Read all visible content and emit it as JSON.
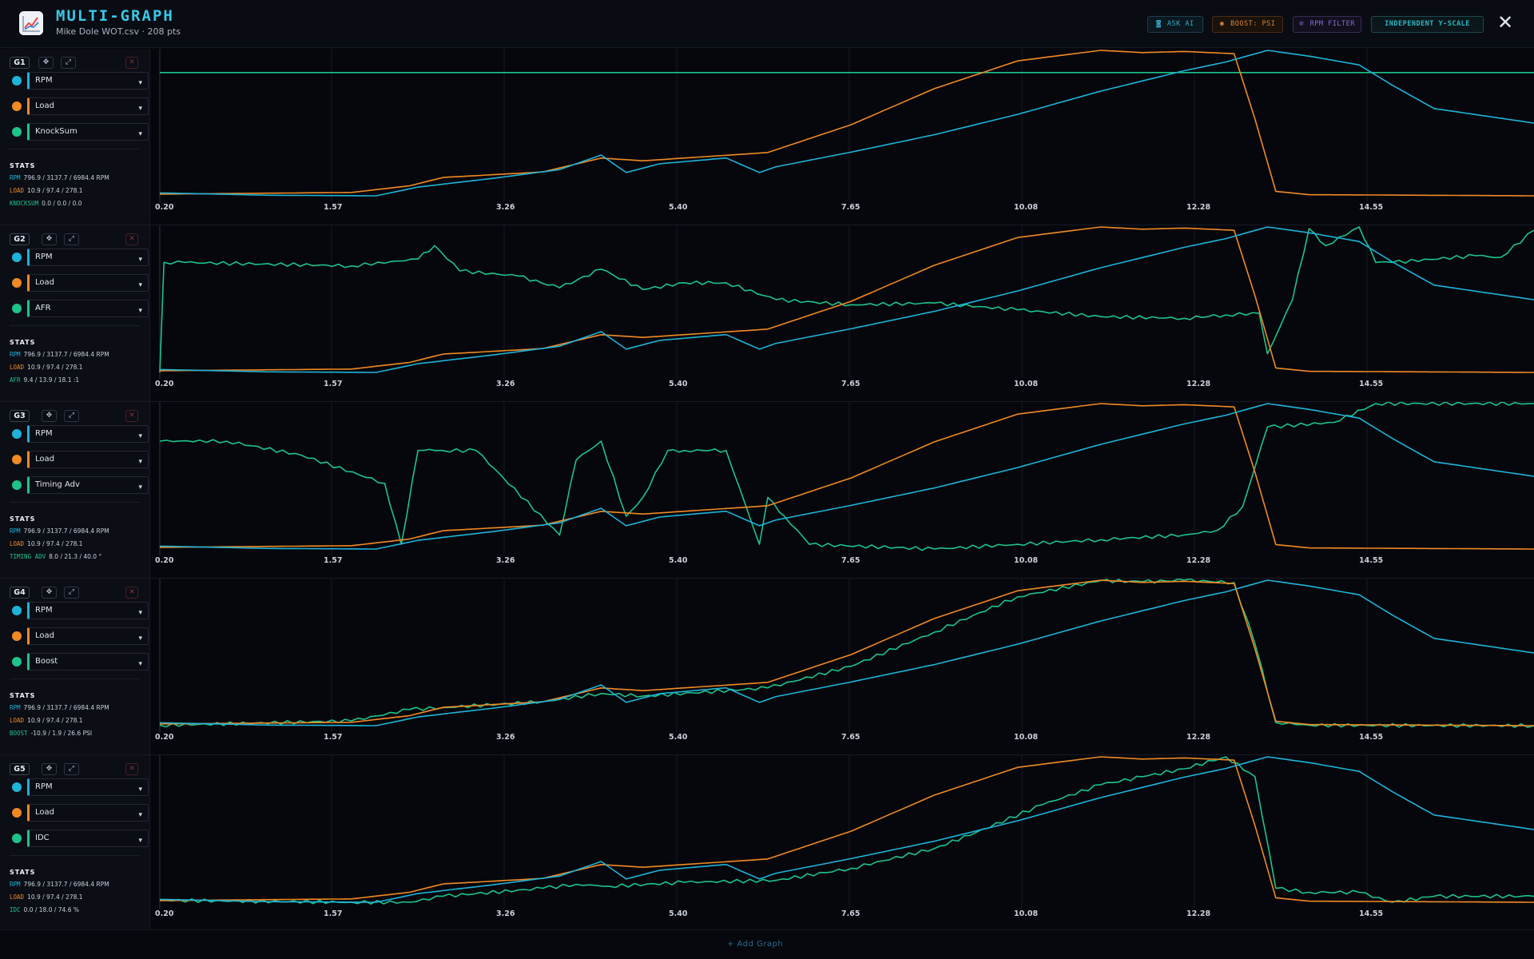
{
  "header": {
    "title": "MULTI-GRAPH",
    "subtitle": "Mike Dole WOT.csv · 208 pts",
    "buttons": {
      "ask_ai": "ASK AI",
      "boost": "BOOST: PSI",
      "rpm_filter": "RPM FILTER",
      "yscale": "INDEPENDENT Y-SCALE"
    }
  },
  "footer": {
    "add_graph": "+ Add Graph"
  },
  "colors": {
    "rpm": "#1fb3d9",
    "load": "#f08a24",
    "third": "#1ec38a",
    "accent": "#39c8e8"
  },
  "x_ticks": [
    "0.20",
    "1.57",
    "3.26",
    "5.40",
    "7.65",
    "10.08",
    "12.28",
    "14.55"
  ],
  "graphs": [
    {
      "tag": "G1",
      "series_labels": [
        "RPM",
        "Load",
        "KnockSum"
      ],
      "stats_title": "STATS",
      "stats": [
        {
          "key": "RPM",
          "text": "796.9 / 3137.7 / 6984.4 RPM"
        },
        {
          "key": "LOAD",
          "text": "10.9 / 97.4 / 278.1"
        },
        {
          "key": "KNOCKSUM",
          "text": "0.0 / 0.0 / 0.0"
        }
      ]
    },
    {
      "tag": "G2",
      "series_labels": [
        "RPM",
        "Load",
        "AFR"
      ],
      "stats_title": "STATS",
      "stats": [
        {
          "key": "RPM",
          "text": "796.9 / 3137.7 / 6984.4 RPM"
        },
        {
          "key": "LOAD",
          "text": "10.9 / 97.4 / 278.1"
        },
        {
          "key": "AFR",
          "text": "9.4 / 13.9 / 18.1 :1"
        }
      ]
    },
    {
      "tag": "G3",
      "series_labels": [
        "RPM",
        "Load",
        "Timing Adv"
      ],
      "stats_title": "STATS",
      "stats": [
        {
          "key": "RPM",
          "text": "796.9 / 3137.7 / 6984.4 RPM"
        },
        {
          "key": "LOAD",
          "text": "10.9 / 97.4 / 278.1"
        },
        {
          "key": "TIMING ADV",
          "text": "8.0 / 21.3 / 40.0 °"
        }
      ]
    },
    {
      "tag": "G4",
      "series_labels": [
        "RPM",
        "Load",
        "Boost"
      ],
      "stats_title": "STATS",
      "stats": [
        {
          "key": "RPM",
          "text": "796.9 / 3137.7 / 6984.4 RPM"
        },
        {
          "key": "LOAD",
          "text": "10.9 / 97.4 / 278.1"
        },
        {
          "key": "BOOST",
          "text": "-10.9 / 1.9 / 26.6 PSI"
        }
      ]
    },
    {
      "tag": "G5",
      "series_labels": [
        "RPM",
        "Load",
        "IDC"
      ],
      "stats_title": "STATS",
      "stats": [
        {
          "key": "RPM",
          "text": "796.9 / 3137.7 / 6984.4 RPM"
        },
        {
          "key": "LOAD",
          "text": "10.9 / 97.4 / 278.1"
        },
        {
          "key": "IDC",
          "text": "0.0 / 18.0 / 74.6 %"
        }
      ]
    }
  ],
  "chart_data": [
    {
      "type": "line",
      "xlabel": "",
      "ylabel": "",
      "x_ticks": [
        "0.20",
        "1.57",
        "3.26",
        "5.40",
        "7.65",
        "10.08",
        "12.28",
        "14.55"
      ],
      "grid": true,
      "independent_y_scale": true,
      "series": [
        {
          "name": "RPM",
          "unit": "RPM",
          "x": [
            0.2,
            1.5,
            2.8,
            3.3,
            4.2,
            5.0,
            5.5,
            5.8,
            6.2,
            7.0,
            7.4,
            7.6,
            8.5,
            9.5,
            10.5,
            11.5,
            12.5,
            13.0,
            13.5,
            14.0,
            14.6,
            15.0,
            15.5,
            16.7
          ],
          "values": [
            900,
            820,
            800,
            1100,
            1400,
            1700,
            2200,
            1600,
            1900,
            2100,
            1600,
            1800,
            2300,
            2900,
            3600,
            4400,
            5100,
            5400,
            5800,
            5600,
            5300,
            4600,
            3800,
            3300
          ]
        },
        {
          "name": "Load",
          "values_min_mean_max": [
            10.9,
            97.4,
            278.1
          ],
          "x": [
            0.2,
            2.5,
            3.2,
            3.6,
            4.8,
            5.5,
            6.0,
            7.5,
            8.5,
            9.5,
            10.5,
            11.5,
            12.0,
            12.5,
            13.1,
            13.35,
            13.6,
            14.0,
            16.7
          ],
          "values": [
            15,
            18,
            30,
            45,
            55,
            80,
            75,
            90,
            140,
            205,
            255,
            274,
            270,
            272,
            268,
            150,
            20,
            14,
            12
          ]
        },
        {
          "name": "KnockSum",
          "values_min_mean_max": [
            0.0,
            0.0,
            0.0
          ],
          "x": [
            0.2,
            16.7
          ],
          "values": [
            0,
            0
          ]
        }
      ]
    },
    {
      "type": "line",
      "x_ticks": [
        "0.20",
        "1.57",
        "3.26",
        "5.40",
        "7.65",
        "10.08",
        "12.28",
        "14.55"
      ],
      "series": [
        {
          "name": "RPM",
          "unit": "RPM",
          "x": [
            0.2,
            1.5,
            2.8,
            3.3,
            4.2,
            5.0,
            5.5,
            5.8,
            6.2,
            7.0,
            7.4,
            7.6,
            8.5,
            9.5,
            10.5,
            11.5,
            12.5,
            13.0,
            13.5,
            14.0,
            14.6,
            15.0,
            15.5,
            16.7
          ],
          "values": [
            900,
            820,
            800,
            1100,
            1400,
            1700,
            2200,
            1600,
            1900,
            2100,
            1600,
            1800,
            2300,
            2900,
            3600,
            4400,
            5100,
            5400,
            5800,
            5600,
            5300,
            4600,
            3800,
            3300
          ]
        },
        {
          "name": "Load",
          "x": [
            0.2,
            2.5,
            3.2,
            3.6,
            4.8,
            5.5,
            6.0,
            7.5,
            8.5,
            9.5,
            10.5,
            11.5,
            12.0,
            12.5,
            13.1,
            13.35,
            13.6,
            14.0,
            16.7
          ],
          "values": [
            15,
            18,
            30,
            45,
            55,
            80,
            75,
            90,
            140,
            205,
            255,
            274,
            270,
            272,
            268,
            150,
            20,
            14,
            12
          ]
        },
        {
          "name": "AFR",
          "unit": ":1",
          "x": [
            0.2,
            0.25,
            0.5,
            2.5,
            3.3,
            3.5,
            3.8,
            4.5,
            5.0,
            5.5,
            6.0,
            6.5,
            7.0,
            7.6,
            8.5,
            9.5,
            10.5,
            11.5,
            12.5,
            13.0,
            13.4,
            13.5,
            13.8,
            14.0,
            14.2,
            14.6,
            14.8,
            15.0,
            16.0,
            16.3,
            16.7
          ],
          "values": [
            9.5,
            16.0,
            16.0,
            15.8,
            16.2,
            17.0,
            15.5,
            15.2,
            14.5,
            15.6,
            14.4,
            14.8,
            14.8,
            13.8,
            13.5,
            13.6,
            13.2,
            12.8,
            12.7,
            12.9,
            13.0,
            10.6,
            13.8,
            18.0,
            17.0,
            18.1,
            16.0,
            16.0,
            16.4,
            16.3,
            17.9
          ]
        }
      ]
    },
    {
      "type": "line",
      "x_ticks": [
        "0.20",
        "1.57",
        "3.26",
        "5.40",
        "7.65",
        "10.08",
        "12.28",
        "14.55"
      ],
      "series": [
        {
          "name": "RPM",
          "unit": "RPM",
          "x": [
            0.2,
            1.5,
            2.8,
            3.3,
            4.2,
            5.0,
            5.5,
            5.8,
            6.2,
            7.0,
            7.4,
            7.6,
            8.5,
            9.5,
            10.5,
            11.5,
            12.5,
            13.0,
            13.5,
            14.0,
            14.6,
            15.0,
            15.5,
            16.7
          ],
          "values": [
            900,
            820,
            800,
            1100,
            1400,
            1700,
            2200,
            1600,
            1900,
            2100,
            1600,
            1800,
            2300,
            2900,
            3600,
            4400,
            5100,
            5400,
            5800,
            5600,
            5300,
            4600,
            3800,
            3300
          ]
        },
        {
          "name": "Load",
          "x": [
            0.2,
            2.5,
            3.2,
            3.6,
            4.8,
            5.5,
            6.0,
            7.5,
            8.5,
            9.5,
            10.5,
            11.5,
            12.0,
            12.5,
            13.1,
            13.35,
            13.6,
            14.0,
            16.7
          ],
          "values": [
            15,
            18,
            30,
            45,
            55,
            80,
            75,
            90,
            140,
            205,
            255,
            274,
            270,
            272,
            268,
            150,
            20,
            14,
            12
          ]
        },
        {
          "name": "Timing Adv",
          "unit": "°",
          "x": [
            0.2,
            1.0,
            1.9,
            2.9,
            3.1,
            3.3,
            3.5,
            3.6,
            4.0,
            5.0,
            5.2,
            5.5,
            5.8,
            6.0,
            6.3,
            6.5,
            6.8,
            7.0,
            7.4,
            7.5,
            7.7,
            8.0,
            9.5,
            10.5,
            11.5,
            12.5,
            12.9,
            13.2,
            13.5,
            14.3,
            14.8,
            16.7
          ],
          "values": [
            32,
            32,
            29,
            23,
            10,
            30,
            30,
            30,
            30,
            12,
            28,
            32,
            16,
            20,
            30,
            30,
            30,
            30,
            10,
            20,
            16,
            10,
            9,
            10,
            11,
            12,
            13,
            18,
            35,
            36,
            40,
            40
          ]
        }
      ]
    },
    {
      "type": "line",
      "x_ticks": [
        "0.20",
        "1.57",
        "3.26",
        "5.40",
        "7.65",
        "10.08",
        "12.28",
        "14.55"
      ],
      "series": [
        {
          "name": "RPM",
          "unit": "RPM",
          "x": [
            0.2,
            1.5,
            2.8,
            3.3,
            4.2,
            5.0,
            5.5,
            5.8,
            6.2,
            7.0,
            7.4,
            7.6,
            8.5,
            9.5,
            10.5,
            11.5,
            12.5,
            13.0,
            13.5,
            14.0,
            14.6,
            15.0,
            15.5,
            16.7
          ],
          "values": [
            900,
            820,
            800,
            1100,
            1400,
            1700,
            2200,
            1600,
            1900,
            2100,
            1600,
            1800,
            2300,
            2900,
            3600,
            4400,
            5100,
            5400,
            5800,
            5600,
            5300,
            4600,
            3800,
            3300
          ]
        },
        {
          "name": "Load",
          "x": [
            0.2,
            2.5,
            3.2,
            3.6,
            4.8,
            5.5,
            6.0,
            7.5,
            8.5,
            9.5,
            10.5,
            11.5,
            12.0,
            12.5,
            13.1,
            13.35,
            13.6,
            14.0,
            16.7
          ],
          "values": [
            15,
            18,
            30,
            45,
            55,
            80,
            75,
            90,
            140,
            205,
            255,
            274,
            270,
            272,
            268,
            150,
            20,
            14,
            12
          ]
        },
        {
          "name": "Boost",
          "unit": "PSI",
          "x": [
            0.2,
            2.5,
            3.2,
            3.6,
            4.8,
            5.5,
            6.0,
            7.5,
            8.5,
            9.5,
            10.5,
            11.5,
            12.0,
            12.5,
            13.1,
            13.35,
            13.6,
            14.0,
            16.7
          ],
          "values": [
            -10.5,
            -9.4,
            -6.5,
            -6.0,
            -4.5,
            -2.4,
            -3.1,
            -1.0,
            4.5,
            13.2,
            22.2,
            26.3,
            26.0,
            26.4,
            25.8,
            10.2,
            -9.8,
            -10.5,
            -10.6
          ]
        }
      ]
    },
    {
      "type": "line",
      "x_ticks": [
        "0.20",
        "1.57",
        "3.26",
        "5.40",
        "7.65",
        "10.08",
        "12.28",
        "14.55"
      ],
      "series": [
        {
          "name": "RPM",
          "unit": "RPM",
          "x": [
            0.2,
            1.5,
            2.8,
            3.3,
            4.2,
            5.0,
            5.5,
            5.8,
            6.2,
            7.0,
            7.4,
            7.6,
            8.5,
            9.5,
            10.5,
            11.5,
            12.5,
            13.0,
            13.5,
            14.0,
            14.6,
            15.0,
            15.5,
            16.7
          ],
          "values": [
            900,
            820,
            800,
            1100,
            1400,
            1700,
            2200,
            1600,
            1900,
            2100,
            1600,
            1800,
            2300,
            2900,
            3600,
            4400,
            5100,
            5400,
            5800,
            5600,
            5300,
            4600,
            3800,
            3300
          ]
        },
        {
          "name": "Load",
          "x": [
            0.2,
            2.5,
            3.2,
            3.6,
            4.8,
            5.5,
            6.0,
            7.5,
            8.5,
            9.5,
            10.5,
            11.5,
            12.0,
            12.5,
            13.1,
            13.35,
            13.6,
            14.0,
            16.7
          ],
          "values": [
            15,
            18,
            30,
            45,
            55,
            80,
            75,
            90,
            140,
            205,
            255,
            274,
            270,
            272,
            268,
            150,
            20,
            14,
            12
          ]
        },
        {
          "name": "IDC",
          "unit": "%",
          "x": [
            0.2,
            2.5,
            3.2,
            3.6,
            4.8,
            5.2,
            5.6,
            6.5,
            7.6,
            8.5,
            9.5,
            10.0,
            10.8,
            11.5,
            12.0,
            12.5,
            13.0,
            13.35,
            13.6,
            14.0,
            14.6,
            15.0,
            15.5,
            16.7
          ],
          "values": [
            2,
            1,
            1,
            4,
            8,
            10,
            9,
            11,
            12,
            18,
            28,
            36,
            50,
            60,
            64,
            68,
            74,
            64,
            8,
            6,
            6,
            1,
            4,
            4
          ]
        }
      ]
    }
  ]
}
